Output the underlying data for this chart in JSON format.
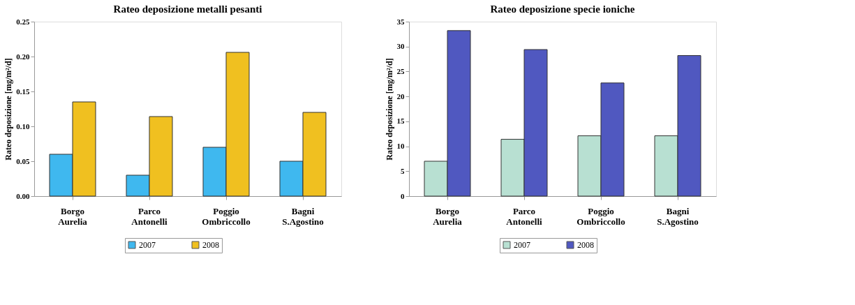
{
  "chart_data": [
    {
      "type": "bar",
      "title": "Rateo deposizione metalli pesanti",
      "ylabel": "Rateo deposizione [mg/m²/d]",
      "categories": [
        "Borgo\nAurelia",
        "Parco\nAntonelli",
        "Poggio\nOmbriccollo",
        "Bagni\nS.Agostino"
      ],
      "series": [
        {
          "name": "2007",
          "color": "#3fb8ef",
          "values": [
            0.06,
            0.03,
            0.07,
            0.05
          ]
        },
        {
          "name": "2008",
          "color": "#f0c020",
          "values": [
            0.135,
            0.114,
            0.206,
            0.12
          ]
        }
      ],
      "ylim": [
        0,
        0.25
      ],
      "yticks": [
        {
          "value": 0,
          "label": "0.00"
        },
        {
          "value": 0.05,
          "label": "0.05"
        },
        {
          "value": 0.1,
          "label": "0.10"
        },
        {
          "value": 0.15,
          "label": "0.15"
        },
        {
          "value": 0.2,
          "label": "0.20"
        },
        {
          "value": 0.25,
          "label": "0.25"
        }
      ],
      "grid": false,
      "legend": "bottom"
    },
    {
      "type": "bar",
      "title": "Rateo deposizione specie ioniche",
      "ylabel": "Rateo deposizione [mg/m²/d]",
      "categories": [
        "Borgo\nAurelia",
        "Parco\nAntonelli",
        "Poggio\nOmbriccollo",
        "Bagni\nS.Agostino"
      ],
      "series": [
        {
          "name": "2007",
          "color": "#b8e0d2",
          "values": [
            7,
            11.4,
            12.1,
            12.1
          ]
        },
        {
          "name": "2008",
          "color": "#5058c0",
          "values": [
            33.2,
            29.4,
            22.7,
            28.2
          ]
        }
      ],
      "ylim": [
        0,
        35
      ],
      "yticks": [
        0,
        5,
        10,
        15,
        20,
        25,
        30,
        35
      ],
      "grid": false,
      "legend": "bottom"
    }
  ]
}
